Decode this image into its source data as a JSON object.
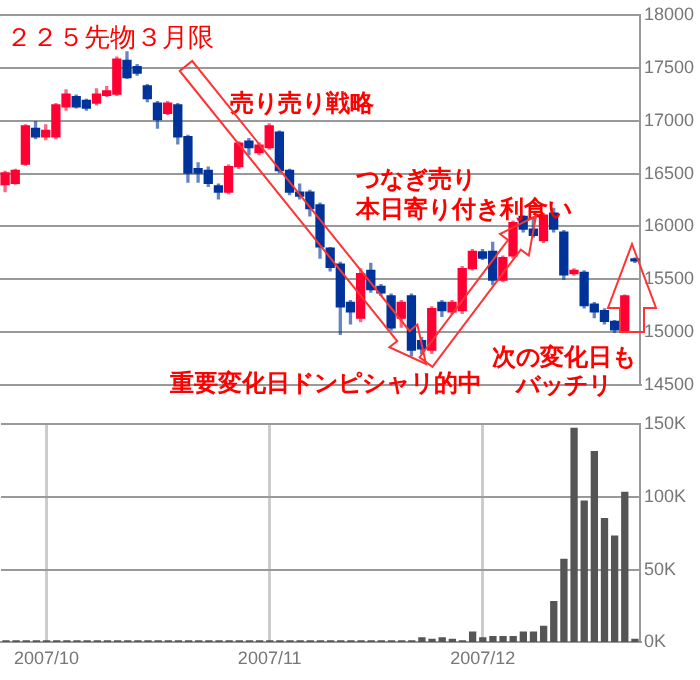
{
  "chart_data": [
    {
      "type": "candlestick",
      "title": "２２５先物３月限",
      "categories": [
        null,
        null,
        null,
        null,
        null,
        null,
        null,
        null,
        null,
        null,
        null,
        null,
        null,
        null,
        null,
        null,
        null,
        null,
        null,
        null,
        null,
        null,
        null,
        null,
        null,
        null,
        null,
        null,
        null,
        null,
        null,
        null,
        null,
        null,
        null,
        null,
        null,
        null,
        null,
        null,
        null,
        null,
        null,
        null,
        null,
        null,
        null,
        null,
        null,
        null,
        null,
        null,
        null,
        null,
        null,
        null,
        null,
        null,
        null,
        null,
        null,
        null,
        null
      ],
      "ohlc": [
        [
          16396,
          16520,
          16330,
          16505
        ],
        [
          16408,
          16540,
          16400,
          16529
        ],
        [
          16589,
          16960,
          16580,
          16950
        ],
        [
          16926,
          16990,
          16830,
          16848
        ],
        [
          16848,
          16960,
          16820,
          16908
        ],
        [
          16848,
          17160,
          16830,
          17148
        ],
        [
          17130,
          17290,
          17100,
          17251
        ],
        [
          17227,
          17240,
          17120,
          17130
        ],
        [
          17190,
          17200,
          17100,
          17118
        ],
        [
          17166,
          17300,
          17150,
          17251
        ],
        [
          17239,
          17320,
          17230,
          17281
        ],
        [
          17251,
          17600,
          17240,
          17582
        ],
        [
          17570,
          17650,
          17400,
          17407
        ],
        [
          17509,
          17530,
          17430,
          17449
        ],
        [
          17329,
          17340,
          17180,
          17208
        ],
        [
          17166,
          17180,
          16930,
          17010
        ],
        [
          17070,
          17180,
          17060,
          17166
        ],
        [
          17148,
          17160,
          16780,
          16848
        ],
        [
          16848,
          16860,
          16420,
          16505
        ],
        [
          16547,
          16600,
          16420,
          16505
        ],
        [
          16529,
          16560,
          16380,
          16408
        ],
        [
          16384,
          16400,
          16260,
          16324
        ],
        [
          16324,
          16580,
          16310,
          16565
        ],
        [
          16565,
          16800,
          16550,
          16787
        ],
        [
          16805,
          16830,
          16680,
          16745
        ],
        [
          16697,
          16790,
          16680,
          16769
        ],
        [
          16745,
          16970,
          16730,
          16950
        ],
        [
          16890,
          16900,
          16510,
          16529
        ],
        [
          16529,
          16540,
          16300,
          16324
        ],
        [
          16324,
          16400,
          16260,
          16288
        ],
        [
          16324,
          16340,
          16100,
          16168
        ],
        [
          16204,
          16220,
          15700,
          15807
        ],
        [
          15795,
          15800,
          15580,
          15614
        ],
        [
          15644,
          15660,
          14980,
          15241
        ],
        [
          15283,
          15300,
          15080,
          15193
        ],
        [
          15133,
          15600,
          15100,
          15554
        ],
        [
          15584,
          15650,
          15380,
          15404
        ],
        [
          15434,
          15450,
          15350,
          15373
        ],
        [
          15343,
          15360,
          15020,
          15042
        ],
        [
          15133,
          15300,
          15050,
          15283
        ],
        [
          15343,
          15360,
          14780,
          14832
        ],
        [
          14922,
          14950,
          14800,
          14844
        ],
        [
          14832,
          15240,
          14800,
          15223
        ],
        [
          15283,
          15300,
          15150,
          15205
        ],
        [
          15193,
          15300,
          15180,
          15283
        ],
        [
          15205,
          15620,
          15180,
          15602
        ],
        [
          15602,
          15780,
          15590,
          15765
        ],
        [
          15760,
          15780,
          15690,
          15700
        ],
        [
          15765,
          15850,
          15450,
          15494
        ],
        [
          15494,
          15720,
          15480,
          15704
        ],
        [
          15722,
          16050,
          15700,
          16035
        ],
        [
          16095,
          16100,
          15950,
          15975
        ],
        [
          15975,
          16080,
          15900,
          15915
        ],
        [
          15867,
          16120,
          15850,
          16107
        ],
        [
          16125,
          16170,
          15950,
          15975
        ],
        [
          15945,
          15960,
          15500,
          15542
        ],
        [
          15554,
          15600,
          15540,
          15584
        ],
        [
          15566,
          15580,
          15230,
          15253
        ],
        [
          15265,
          15280,
          15140,
          15193
        ],
        [
          15205,
          15220,
          15080,
          15103
        ],
        [
          15103,
          15110,
          15000,
          15024
        ],
        [
          15012,
          15350,
          15000,
          15343
        ],
        [
          15686,
          15700,
          15660,
          15674
        ]
      ],
      "colors": [
        "#ff0033",
        "#ff0033",
        "#ff0033",
        "#003399",
        "#ff0033",
        "#ff0033",
        "#ff0033",
        "#003399",
        "#003399",
        "#ff0033",
        "#ff0033",
        "#ff0033",
        "#003399",
        "#003399",
        "#003399",
        "#003399",
        "#ff0033",
        "#003399",
        "#003399",
        "#003399",
        "#003399",
        "#003399",
        "#ff0033",
        "#ff0033",
        "#003399",
        "#ff0033",
        "#ff0033",
        "#003399",
        "#003399",
        "#003399",
        "#003399",
        "#003399",
        "#003399",
        "#003399",
        "#003399",
        "#ff0033",
        "#003399",
        "#003399",
        "#003399",
        "#ff0033",
        "#003399",
        "#003399",
        "#ff0033",
        "#003399",
        "#ff0033",
        "#ff0033",
        "#ff0033",
        "#003399",
        "#003399",
        "#ff0033",
        "#ff0033",
        "#003399",
        "#003399",
        "#ff0033",
        "#003399",
        "#003399",
        "#ff0033",
        "#003399",
        "#003399",
        "#003399",
        "#003399",
        "#ff0033",
        "#003399"
      ],
      "ylim": [
        14500,
        18000
      ],
      "yticks": [
        14500,
        15000,
        15500,
        16000,
        16500,
        17000,
        17500,
        18000
      ],
      "grid": "y",
      "legend": false,
      "tick_labels": "y",
      "annotations": [
        "売り売り戦略",
        "つなぎ売り",
        "本日寄り付き利食い",
        "重要変化日ドンピシャリ的中",
        "次の変化日も",
        "バッチリ"
      ]
    },
    {
      "type": "bar",
      "categories": [
        null,
        null,
        null,
        null,
        "2007/10",
        null,
        null,
        null,
        null,
        null,
        null,
        null,
        null,
        null,
        null,
        null,
        null,
        null,
        null,
        null,
        null,
        null,
        null,
        null,
        null,
        null,
        "2007/11",
        null,
        null,
        null,
        null,
        null,
        null,
        null,
        null,
        null,
        null,
        null,
        null,
        null,
        null,
        null,
        null,
        null,
        null,
        null,
        null,
        "2007/12",
        null,
        null,
        null,
        null,
        null,
        null,
        null,
        null,
        null,
        null,
        null,
        null,
        null,
        null,
        null
      ],
      "values": [
        1000,
        1000,
        1000,
        1000,
        1000,
        1000,
        1000,
        1000,
        1000,
        1000,
        1000,
        1000,
        1000,
        1000,
        1000,
        1000,
        1000,
        1000,
        1000,
        1000,
        1000,
        1000,
        1000,
        1000,
        1000,
        1000,
        1000,
        1000,
        1000,
        1000,
        1000,
        1000,
        1000,
        1000,
        1000,
        1000,
        1000,
        1000,
        1000,
        1000,
        1000,
        3000,
        2000,
        3000,
        2000,
        1000,
        7000,
        3000,
        4000,
        4000,
        4000,
        7000,
        7000,
        11000,
        28000,
        57000,
        147000,
        97000,
        131000,
        85000,
        73000,
        103000,
        2000
      ],
      "color": "#555555",
      "ylim": [
        0,
        150000
      ],
      "yticks": [
        {
          "value": 0,
          "label": "0K"
        },
        {
          "value": 50000,
          "label": "50K"
        },
        {
          "value": 100000,
          "label": "100K"
        },
        {
          "value": 150000,
          "label": "150K"
        }
      ],
      "grid": true,
      "legend": false
    }
  ]
}
